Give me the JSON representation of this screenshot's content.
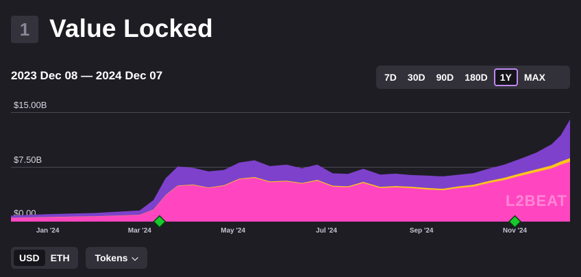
{
  "section": {
    "number": "1",
    "title": "Value Locked"
  },
  "date_range": "2023 Dec 08 — 2024 Dec 07",
  "range_buttons": [
    "7D",
    "30D",
    "90D",
    "180D",
    "1Y",
    "MAX"
  ],
  "active_range": "1Y",
  "unit_buttons": [
    "USD",
    "ETH"
  ],
  "active_unit": "USD",
  "tokens_label": "Tokens",
  "watermark": "L2BEAT",
  "colors": {
    "background": "#1e1d24",
    "purple_series": "#7e41cc",
    "yellow_series": "#ffc61b",
    "pink_series": "#ff46c0",
    "milestone": "#18c92c",
    "active_outline": "#c08af5"
  },
  "chart_data": {
    "type": "area",
    "stacked": true,
    "y_tick_labels": [
      "$15.00B",
      "$7.50B",
      "$0.00"
    ],
    "y_ticks": [
      15,
      7.5,
      0
    ],
    "ylim": [
      0,
      15
    ],
    "x_tick_labels": [
      "Jan '24",
      "Mar '24",
      "May '24",
      "Jul '24",
      "Sep '24",
      "Nov '24"
    ],
    "x_tick_dates": [
      "2024-01-01",
      "2024-03-01",
      "2024-05-01",
      "2024-07-01",
      "2024-09-01",
      "2024-11-01"
    ],
    "xlim": [
      "2023-12-08",
      "2024-12-07"
    ],
    "grid": true,
    "x": [
      "2023-12-08",
      "2024-01-01",
      "2024-02-01",
      "2024-03-01",
      "2024-03-10",
      "2024-03-18",
      "2024-03-26",
      "2024-04-05",
      "2024-04-15",
      "2024-04-25",
      "2024-05-05",
      "2024-05-15",
      "2024-05-25",
      "2024-06-05",
      "2024-06-15",
      "2024-06-25",
      "2024-07-05",
      "2024-07-15",
      "2024-07-25",
      "2024-08-05",
      "2024-08-15",
      "2024-08-25",
      "2024-09-05",
      "2024-09-15",
      "2024-09-25",
      "2024-10-05",
      "2024-10-15",
      "2024-10-25",
      "2024-11-05",
      "2024-11-15",
      "2024-11-25",
      "2024-12-01",
      "2024-12-07"
    ],
    "series": [
      {
        "values": [
          0.5,
          0.6,
          0.7,
          0.9,
          1.6,
          3.6,
          4.9,
          5.0,
          4.6,
          4.9,
          5.8,
          6.0,
          5.4,
          5.5,
          5.2,
          5.6,
          4.8,
          4.7,
          5.3,
          4.6,
          4.7,
          4.6,
          4.4,
          4.3,
          4.6,
          4.8,
          5.3,
          5.7,
          6.3,
          6.8,
          7.3,
          7.8,
          8.2
        ]
      },
      {
        "values": [
          0.02,
          0.02,
          0.03,
          0.03,
          0.04,
          0.05,
          0.06,
          0.07,
          0.08,
          0.08,
          0.09,
          0.1,
          0.1,
          0.1,
          0.1,
          0.12,
          0.12,
          0.13,
          0.14,
          0.15,
          0.17,
          0.18,
          0.2,
          0.2,
          0.22,
          0.25,
          0.27,
          0.3,
          0.34,
          0.36,
          0.4,
          0.45,
          0.5
        ]
      },
      {
        "values": [
          0.3,
          0.4,
          0.45,
          0.6,
          1.3,
          2.3,
          2.6,
          2.3,
          2.2,
          2.1,
          2.2,
          2.3,
          2.1,
          2.2,
          2.0,
          2.1,
          1.7,
          1.7,
          1.8,
          1.7,
          1.7,
          1.6,
          1.7,
          1.7,
          1.6,
          1.6,
          1.7,
          1.8,
          2.0,
          2.3,
          2.9,
          3.6,
          5.3
        ]
      }
    ],
    "milestones": [
      "2024-03-14",
      "2024-11-01"
    ]
  }
}
